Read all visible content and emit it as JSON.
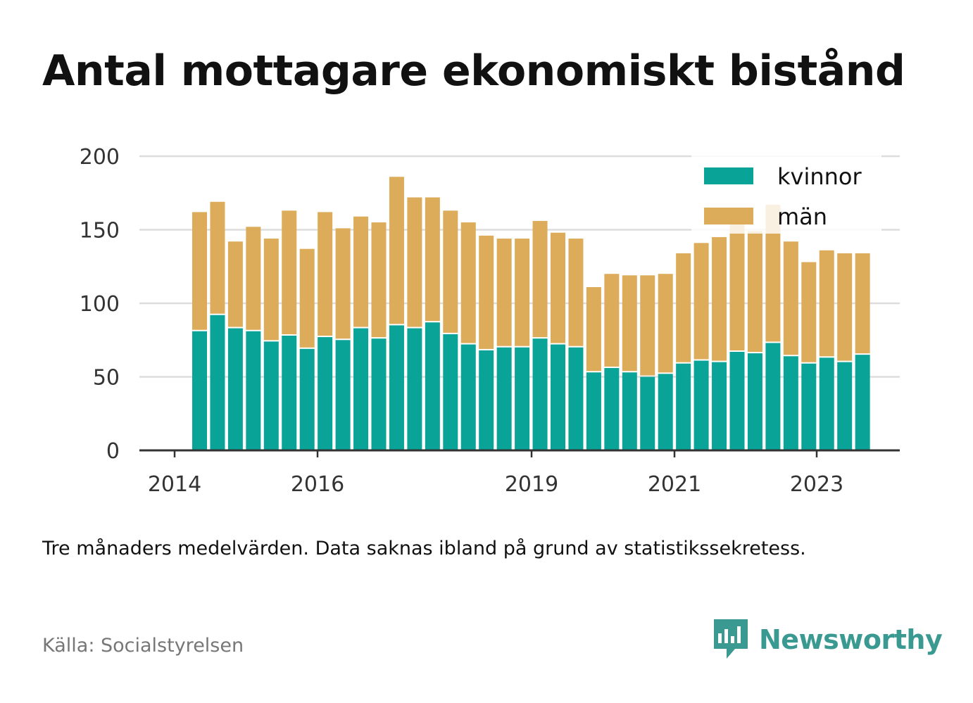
{
  "title": "Antal mottagare ekonomiskt bistånd",
  "caption": "Tre månaders medelvärden. Data saknas ibland på grund av statistikssekretess.",
  "source": "Källa: Socialstyrelsen",
  "brand": {
    "name": "Newsworthy",
    "color": "#3a9a92",
    "icon": "newsworthy-logo-icon"
  },
  "colors": {
    "kvinnor": "#0aa398",
    "man": "#dcac5a",
    "grid": "#dddddd",
    "axis": "#333333"
  },
  "chart_data": {
    "type": "bar",
    "stacked": true,
    "x_ticks": [
      "2014",
      "2016",
      "2019",
      "2021",
      "2023"
    ],
    "ylim": [
      0,
      200
    ],
    "y_ticks": [
      "0",
      "50",
      "100",
      "150",
      "200"
    ],
    "grid": true,
    "legend_position": "top-right",
    "series": [
      {
        "name": "kvinnor",
        "values": [
          81,
          92,
          83,
          81,
          74,
          78,
          69,
          77,
          75,
          83,
          76,
          85,
          83,
          87,
          79,
          72,
          68,
          70,
          70,
          76,
          72,
          70,
          53,
          56,
          53,
          50,
          52,
          59,
          61,
          60,
          67,
          66,
          73,
          64,
          59,
          63,
          60,
          65
        ]
      },
      {
        "name": "män",
        "values": [
          81,
          77,
          59,
          71,
          70,
          85,
          68,
          85,
          76,
          76,
          79,
          101,
          89,
          85,
          84,
          83,
          78,
          74,
          74,
          80,
          76,
          74,
          58,
          64,
          66,
          69,
          68,
          75,
          80,
          85,
          87,
          83,
          94,
          78,
          69,
          73,
          74,
          69
        ]
      }
    ]
  }
}
